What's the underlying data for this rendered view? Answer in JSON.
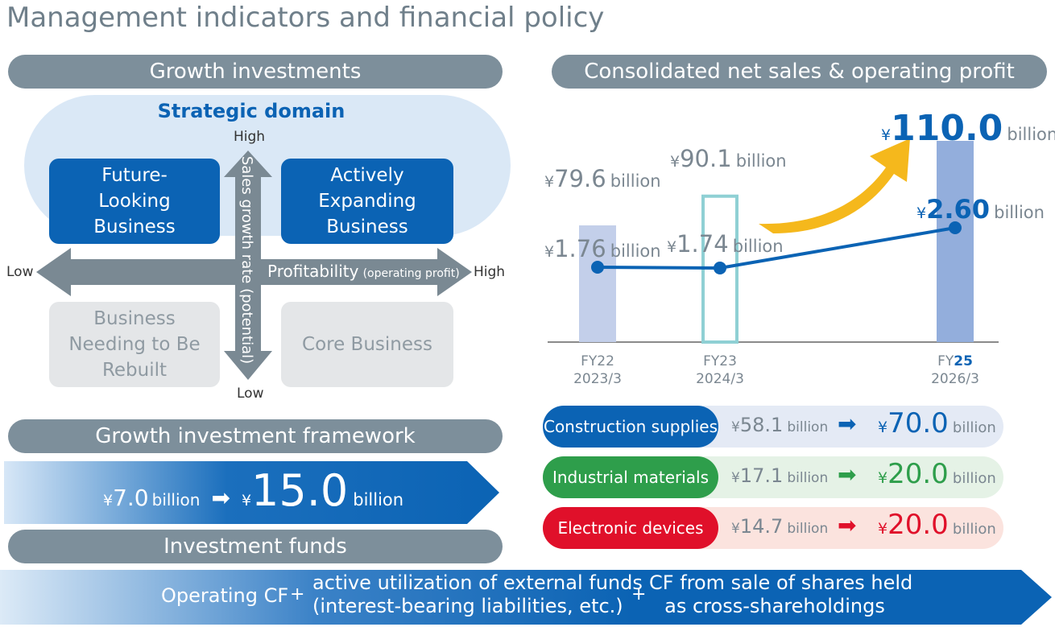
{
  "page_title": "Management indicators and financial policy",
  "left": {
    "growth_investments_header": "Growth investments",
    "strategic_domain": "Strategic domain",
    "quadrants": {
      "future_looking": "Future-Looking Business",
      "actively_expanding": "Actively Expanding Business",
      "needing_rebuilt": "Business Needing to Be Rebuilt",
      "core": "Core Business"
    },
    "axes": {
      "vertical_high": "High",
      "vertical_low": "Low",
      "vertical_label": "Sales growth rate (potential)",
      "horizontal_low": "Low",
      "horizontal_high": "High",
      "horizontal_label": "Profitability",
      "horizontal_sub": "(operating profit)"
    },
    "framework_header": "Growth investment framework",
    "framework": {
      "from_currency": "¥",
      "from_value": "7.0",
      "from_unit": "billion",
      "arrow": "➡",
      "to_currency": "¥",
      "to_value": "15.0",
      "to_unit": "billion"
    },
    "funds_header": "Investment funds"
  },
  "funds_bar": {
    "item1": "Operating CF",
    "plus1": "+",
    "item2_line1": "active utilization of external funds",
    "item2_line2": "(interest-bearing liabilities, etc.)",
    "plus2": "+",
    "item3_line1": "CF from sale of shares held",
    "item3_line2": "as cross-shareholdings"
  },
  "right": {
    "header": "Consolidated net sales & operating profit",
    "segments": [
      {
        "label": "Construction supplies",
        "from": "58.1",
        "to": "70.0",
        "color": "#0b63b4",
        "bg": "#e4eaf5",
        "arrow_color": "#0b63b4",
        "to_color": "#0b63b4"
      },
      {
        "label": "Industrial materials",
        "from": "17.1",
        "to": "20.0",
        "color": "#2e9e4b",
        "bg": "#e5f2e6",
        "arrow_color": "#2e9e4b",
        "to_color": "#2e9e4b"
      },
      {
        "label": "Electronic devices",
        "from": "14.7",
        "to": "20.0",
        "color": "#e0102a",
        "bg": "#fbe3de",
        "arrow_color": "#e0102a",
        "to_color": "#e0102a"
      }
    ],
    "currency": "¥",
    "billion": "billion",
    "arrow": "➡"
  },
  "chart_data": {
    "type": "bar",
    "categories": [
      {
        "fy_prefix": "FY",
        "fy_num": "22",
        "period": "2023/3"
      },
      {
        "fy_prefix": "FY",
        "fy_num": "23",
        "period": "2024/3"
      },
      {
        "fy_prefix": "FY",
        "fy_num": "25",
        "period": "2026/3"
      }
    ],
    "series": [
      {
        "values": [
          79.6,
          90.1,
          110.0
        ],
        "labels": [
          "79.6",
          "90.1",
          "110.0"
        ]
      },
      {
        "values": [
          1.76,
          1.74,
          2.6
        ],
        "labels": [
          "1.76",
          "1.74",
          "2.60"
        ]
      }
    ],
    "currency": "¥",
    "unit": "billion",
    "colors": {
      "fy22_bar": "#c3cfea",
      "fy23_bar_outline": "#8fd0d4",
      "fy25_bar": "#93aedc",
      "line": "#0b63b4",
      "arrow": "#f5b81c"
    }
  }
}
